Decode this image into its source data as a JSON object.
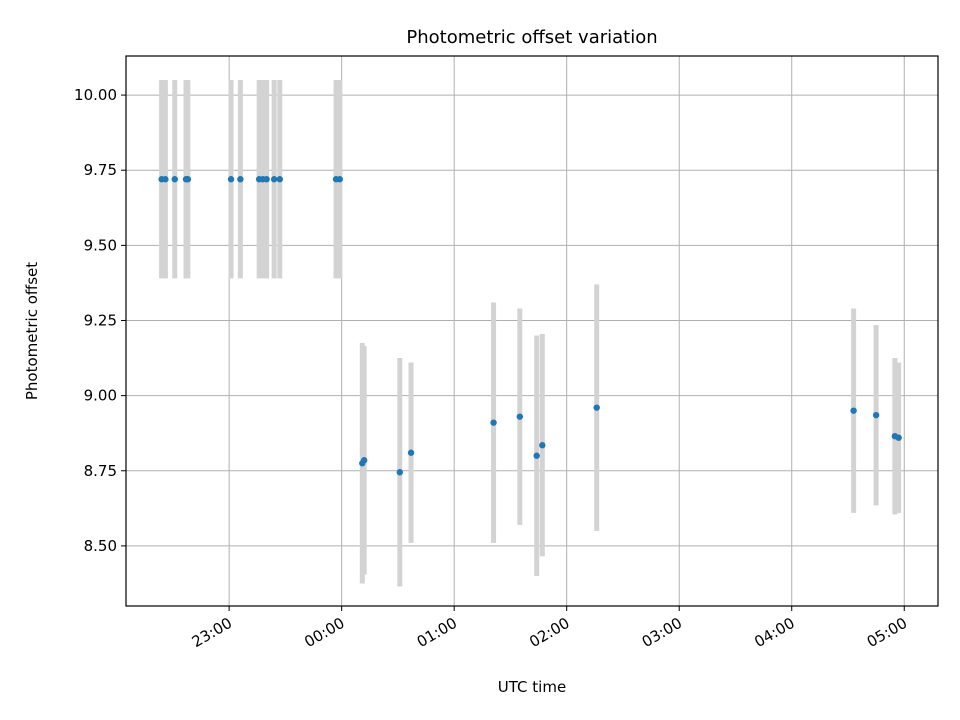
{
  "chart_data": {
    "type": "scatter",
    "title": "Photometric offset variation",
    "xlabel": "UTC time",
    "ylabel": "Photometric offset",
    "xlim": [
      "2023-01-01T22:05:00",
      "2023-01-02T05:18:00"
    ],
    "ylim": [
      8.3,
      10.13
    ],
    "grid": true,
    "y_ticks": [
      "8.50",
      "8.75",
      "9.00",
      "9.25",
      "9.50",
      "9.75",
      "10.00"
    ],
    "x_ticks": [
      "23:00",
      "00:00",
      "01:00",
      "02:00",
      "03:00",
      "04:00",
      "05:00"
    ],
    "x_tick_times": [
      "2023-01-01T23:00",
      "2023-01-02T00:00",
      "2023-01-02T01:00",
      "2023-01-02T02:00",
      "2023-01-02T03:00",
      "2023-01-02T04:00",
      "2023-01-02T05:00"
    ],
    "colors": {
      "points": "#1f77b4",
      "errorbars": "#d3d3d3",
      "grid": "#b0b0b0"
    },
    "points": [
      {
        "x": "2023-01-01T22:24:00",
        "y": 9.72,
        "err": 0.33
      },
      {
        "x": "2023-01-01T22:26:00",
        "y": 9.72,
        "err": 0.33
      },
      {
        "x": "2023-01-01T22:31:00",
        "y": 9.72,
        "err": 0.33
      },
      {
        "x": "2023-01-01T22:37:00",
        "y": 9.72,
        "err": 0.33
      },
      {
        "x": "2023-01-01T22:38:00",
        "y": 9.72,
        "err": 0.33
      },
      {
        "x": "2023-01-01T23:01:00",
        "y": 9.72,
        "err": 0.33
      },
      {
        "x": "2023-01-01T23:06:00",
        "y": 9.72,
        "err": 0.33
      },
      {
        "x": "2023-01-01T23:16:00",
        "y": 9.72,
        "err": 0.33
      },
      {
        "x": "2023-01-01T23:18:00",
        "y": 9.72,
        "err": 0.33
      },
      {
        "x": "2023-01-01T23:20:00",
        "y": 9.72,
        "err": 0.33
      },
      {
        "x": "2023-01-01T23:24:00",
        "y": 9.72,
        "err": 0.33
      },
      {
        "x": "2023-01-01T23:27:00",
        "y": 9.72,
        "err": 0.33
      },
      {
        "x": "2023-01-01T23:57:00",
        "y": 9.72,
        "err": 0.33
      },
      {
        "x": "2023-01-01T23:59:00",
        "y": 9.72,
        "err": 0.33
      },
      {
        "x": "2023-01-02T00:11:00",
        "y": 8.775,
        "err": 0.4
      },
      {
        "x": "2023-01-02T00:12:00",
        "y": 8.785,
        "err": 0.38
      },
      {
        "x": "2023-01-02T00:31:00",
        "y": 8.745,
        "err": 0.38
      },
      {
        "x": "2023-01-02T00:37:00",
        "y": 8.81,
        "err": 0.3
      },
      {
        "x": "2023-01-02T01:21:00",
        "y": 8.91,
        "err": 0.4
      },
      {
        "x": "2023-01-02T01:35:00",
        "y": 8.93,
        "err": 0.36
      },
      {
        "x": "2023-01-02T01:44:00",
        "y": 8.8,
        "err": 0.4
      },
      {
        "x": "2023-01-02T01:47:00",
        "y": 8.835,
        "err": 0.37
      },
      {
        "x": "2023-01-02T02:16:00",
        "y": 8.96,
        "err": 0.41
      },
      {
        "x": "2023-01-02T04:33:00",
        "y": 8.95,
        "err": 0.34
      },
      {
        "x": "2023-01-02T04:45:00",
        "y": 8.935,
        "err": 0.3
      },
      {
        "x": "2023-01-02T04:55:00",
        "y": 8.865,
        "err": 0.26
      },
      {
        "x": "2023-01-02T04:57:00",
        "y": 8.86,
        "err": 0.25
      }
    ]
  }
}
